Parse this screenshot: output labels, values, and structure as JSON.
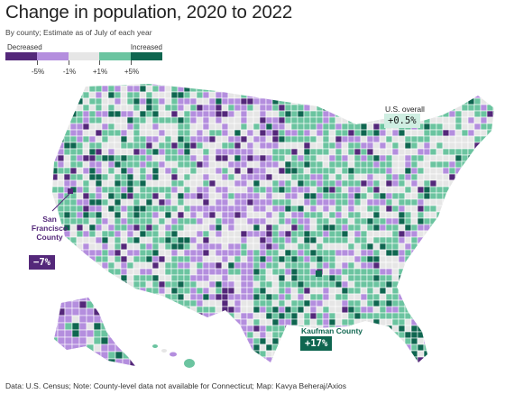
{
  "title": "Change in population, 2020 to 2022",
  "subtitle": "By county; Estimate as of July of each year",
  "legend": {
    "decreased_label": "Decreased",
    "increased_label": "Increased",
    "colors": [
      "#54287a",
      "#b48ede",
      "#e6e6e6",
      "#6bc4a0",
      "#0f6650"
    ],
    "tick_labels": [
      "-5%",
      "-1%",
      "+1%",
      "+5%"
    ]
  },
  "callouts": {
    "sf_label": "San Francisco County",
    "sf_value": "−7%",
    "sf_color": "#54287a",
    "kaufman_label": "Kaufman County",
    "kaufman_value": "+17%",
    "kaufman_color": "#0f6650"
  },
  "us_overall": {
    "label": "U.S. overall",
    "value": "+0.5%"
  },
  "footer": "Data: U.S. Census; Note: County-level data not available for Connecticut; Map: Kavya Beheraj/Axios"
}
